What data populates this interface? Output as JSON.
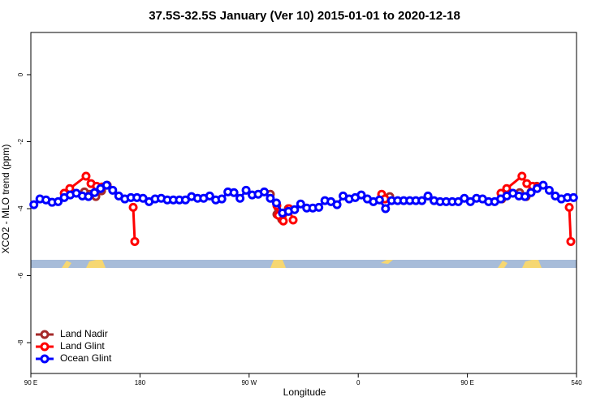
{
  "chart_data": {
    "type": "line",
    "title": "37.5S-32.5S January (Ver 10)   2015-01-01 to 2020-12-18",
    "x_label": "Longitude",
    "y_label": "XCO2 - MLO trend (ppm)",
    "xlim": [
      90,
      540
    ],
    "ylim": [
      -8.92,
      1.26
    ],
    "xticks": [
      {
        "value": 90,
        "label": "90 E"
      },
      180,
      {
        "value": 270,
        "label": "90 W"
      },
      {
        "value": 360,
        "label": "0"
      },
      {
        "value": 450,
        "label": "90 E"
      },
      540
    ],
    "yticks": [
      0,
      -2,
      -4,
      -6,
      -8
    ],
    "legend": "bottom-left",
    "series": [
      {
        "name": "Land Nadir",
        "color": "#a52a2a",
        "x": [
          134.2,
          138.9,
          143.6,
          148.3,
          153,
          160,
          287.5,
          292.9,
          296.9,
          302.3,
          310,
          386,
          400,
          478.4,
          493.1,
          498.5,
          502.5,
          507.2
        ],
        "values": [
          -3.5,
          -3.57,
          -3.64,
          -3.47,
          -3.3,
          null,
          -3.57,
          -4.17,
          -4.32,
          -4.0,
          null,
          -3.64,
          null,
          -3.71,
          -3.52,
          -3.64,
          -3.5,
          -3.33
        ]
      },
      {
        "name": "Land Glint",
        "color": "#ff0000",
        "x": [
          117.5,
          122.1,
          135.5,
          139.6,
          144.2,
          148.9,
          160,
          174.4,
          175.7,
          200,
          292.9,
          294.2,
          298.2,
          302.9,
          306.3,
          320,
          379.3,
          382,
          400,
          477.7,
          482.4,
          495,
          499,
          503.8,
          507.8,
          520,
          534,
          535.3
        ],
        "values": [
          -3.54,
          -3.4,
          -3.03,
          -3.25,
          -3.33,
          -3.35,
          null,
          -3.96,
          -4.98,
          null,
          -3.91,
          -4.2,
          -4.37,
          -4.0,
          -4.34,
          null,
          -3.57,
          -3.71,
          null,
          -3.54,
          -3.4,
          -3.03,
          -3.25,
          -3.33,
          -3.35,
          null,
          -3.96,
          -4.98
        ]
      },
      {
        "name": "Ocean Glint",
        "color": "#0000ff",
        "x": [
          92.5,
          97.5,
          102.5,
          107.5,
          112.5,
          117.5,
          122.5,
          127.5,
          132.5,
          137.5,
          142.5,
          147.5,
          152.5,
          157.5,
          162.5,
          167.5,
          172.5,
          177.5,
          182.5,
          187.5,
          192.5,
          197.5,
          202.5,
          207.5,
          212.5,
          217.5,
          222.5,
          227.5,
          232.5,
          237.5,
          242.5,
          247.5,
          252.5,
          257.5,
          262.5,
          267.5,
          272.5,
          277.5,
          282.5,
          287.5,
          292.5,
          297.5,
          302.5,
          307.5,
          312.5,
          317.5,
          322.5,
          327.5,
          332.5,
          337.5,
          342.5,
          347.5,
          352.5,
          357.5,
          362.5,
          367.5,
          372.5,
          377.5,
          382.5,
          387.5,
          392.5,
          397.5,
          402.5,
          407.5,
          412.5,
          417.5,
          422.5,
          427.5,
          432.5,
          437.5,
          442.5,
          447.5,
          452.5,
          457.5,
          462.5,
          467.5,
          472.5,
          477.5,
          482.5,
          487.5,
          492.5,
          497.5,
          502.5,
          507.5,
          512.5,
          517.5,
          522.5,
          527.5,
          532.5,
          537.5
        ],
        "values": [
          -3.88,
          -3.71,
          -3.74,
          -3.81,
          -3.79,
          -3.67,
          -3.59,
          -3.54,
          -3.62,
          -3.64,
          -3.52,
          -3.4,
          -3.3,
          -3.45,
          -3.62,
          -3.71,
          -3.67,
          -3.67,
          -3.69,
          -3.79,
          -3.71,
          -3.69,
          -3.74,
          -3.74,
          -3.74,
          -3.74,
          -3.64,
          -3.69,
          -3.69,
          -3.62,
          -3.74,
          -3.71,
          -3.5,
          -3.52,
          -3.69,
          -3.45,
          -3.59,
          -3.57,
          -3.5,
          -3.69,
          -3.83,
          -4.13,
          -4.08,
          -4.03,
          -3.86,
          -3.98,
          -3.98,
          -3.96,
          -3.76,
          -3.79,
          -3.88,
          -3.62,
          -3.71,
          -3.67,
          -3.59,
          -3.71,
          -3.79,
          -3.74,
          -4.0,
          -3.76,
          -3.76,
          -3.76,
          -3.76,
          -3.76,
          -3.76,
          -3.62,
          -3.76,
          -3.79,
          -3.79,
          -3.79,
          -3.79,
          -3.69,
          -3.79,
          -3.69,
          -3.71,
          -3.79,
          -3.79,
          -3.71,
          -3.62,
          -3.54,
          -3.62,
          -3.64,
          -3.52,
          -3.4,
          -3.3,
          -3.45,
          -3.62,
          -3.71,
          -3.67,
          -3.67
        ]
      }
    ]
  }
}
